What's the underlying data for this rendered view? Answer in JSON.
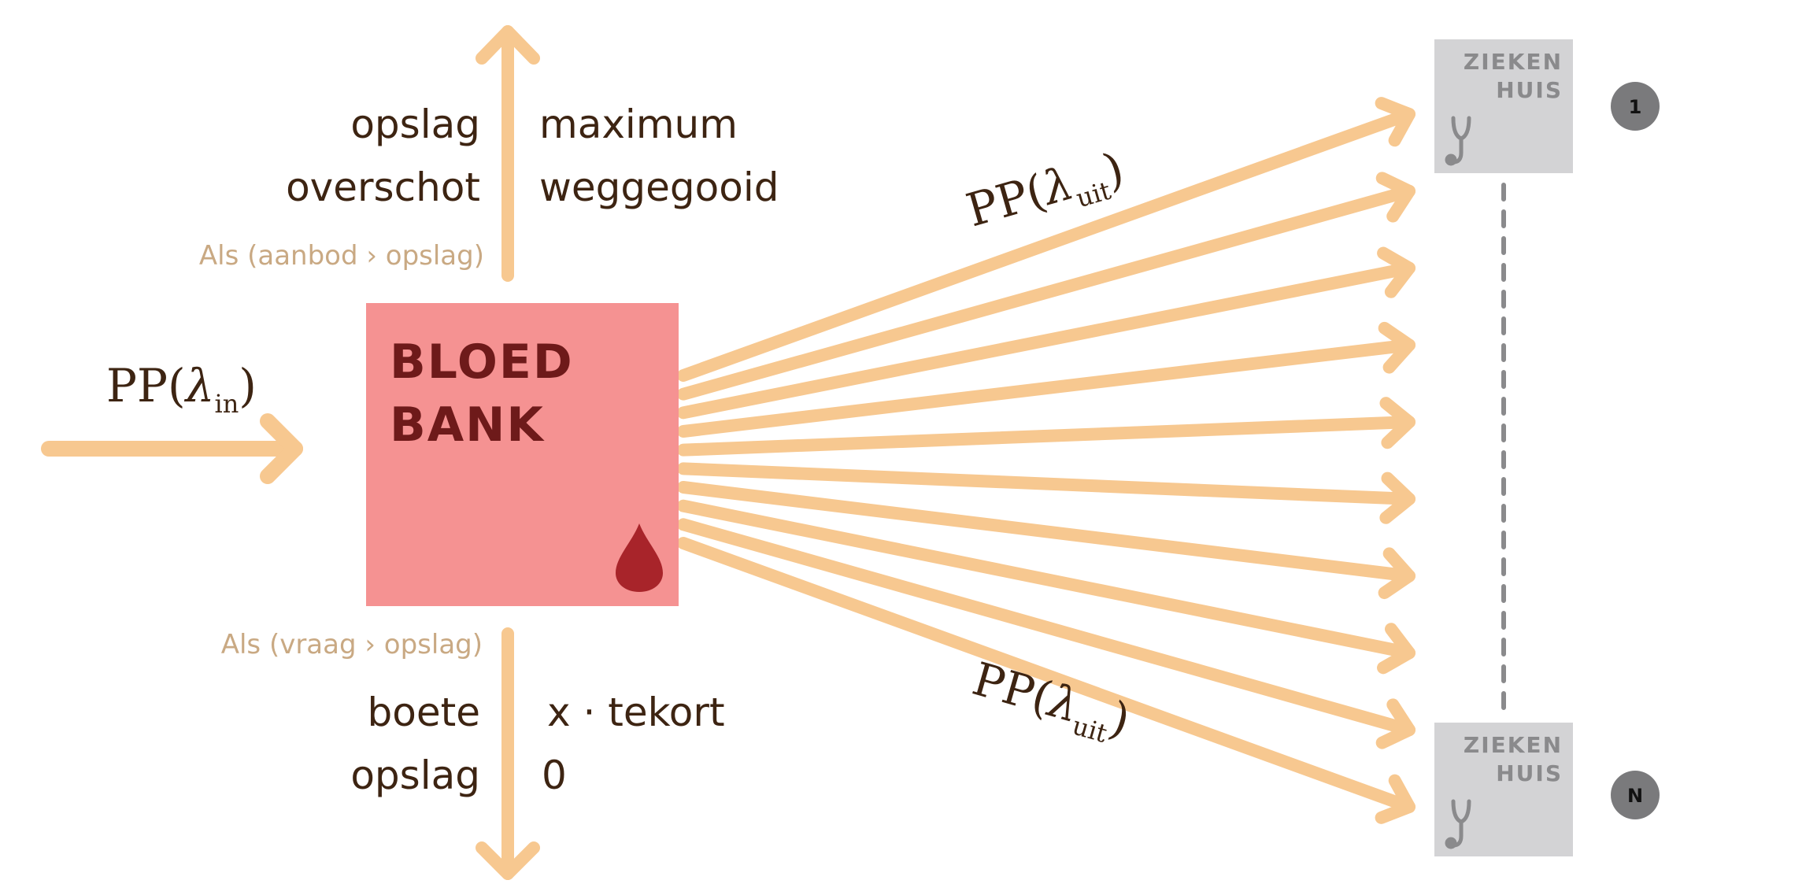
{
  "colors": {
    "arrow": "#f7c890",
    "bank_fill": "#f59292",
    "bank_text": "#6e1a1a",
    "drop": "#a8242a",
    "hospital_fill": "#d3d3d5",
    "hospital_text": "#8a8a8c",
    "badge": "#7a7a7c",
    "label": "#3d2412",
    "condition": "#c9a983"
  },
  "input_label": {
    "prefix": "PP(",
    "symbol": "λ",
    "sub": "in",
    "suffix": ")"
  },
  "bank": {
    "line1": "BLOED",
    "line2": "BANK",
    "icon": "blood-drop-icon"
  },
  "top": {
    "condition": "Als (aanbod › opslag)",
    "left_line1": "opslag",
    "left_line2": "overschot",
    "right_line1": "maximum",
    "right_line2": "weggegooid"
  },
  "bottom": {
    "condition": "Als (vraag › opslag)",
    "left_line1": "boete",
    "left_line2": "opslag",
    "right_line1": "x · tekort",
    "right_line2": "0"
  },
  "output_label_top": {
    "prefix": "PP(",
    "symbol": "λ",
    "sub": "uit",
    "suffix": ")"
  },
  "output_label_bottom": {
    "prefix": "PP(",
    "symbol": "λ",
    "sub": "uit",
    "suffix": ")"
  },
  "hospitals": [
    {
      "line1": "ZIEKEN",
      "line2": "HUIS",
      "badge": "1",
      "icon": "stethoscope-icon"
    },
    {
      "line1": "ZIEKEN",
      "line2": "HUIS",
      "badge": "N",
      "icon": "stethoscope-icon"
    }
  ],
  "fan_arrow_count": 10
}
